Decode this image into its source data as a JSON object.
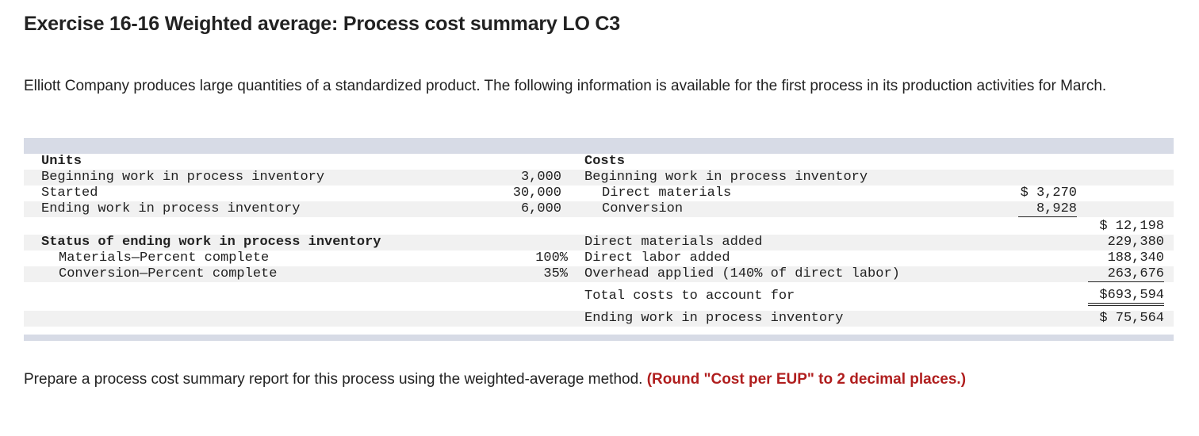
{
  "title": "Exercise 16-16 Weighted average: Process cost summary LO C3",
  "intro": "Elliott Company produces large quantities of a standardized product. The following information is available for the first process in its production activities for March.",
  "units": {
    "header": "Units",
    "rows": [
      {
        "label": "Beginning work in process inventory",
        "value": "3,000"
      },
      {
        "label": "Started",
        "value": "30,000"
      },
      {
        "label": "Ending work in process inventory",
        "value": "6,000"
      }
    ],
    "status_header": "Status of ending work in process inventory",
    "status_rows": [
      {
        "label": "Materials—Percent complete",
        "value": "100%"
      },
      {
        "label": "Conversion—Percent complete",
        "value": "35%"
      }
    ]
  },
  "costs": {
    "header": "Costs",
    "beginning_label": "Beginning work in process inventory",
    "direct_materials_label": "Direct materials",
    "direct_materials_value": "$ 3,270",
    "conversion_label": "Conversion",
    "conversion_value": "8,928",
    "beginning_total": "$ 12,198",
    "added": [
      {
        "label": "Direct materials added",
        "value": "229,380"
      },
      {
        "label": "Direct labor added",
        "value": "188,340"
      },
      {
        "label": "Overhead applied (140% of direct labor)",
        "value": "263,676"
      }
    ],
    "total_label": "Total costs to account for",
    "total_value": "$693,594",
    "ending_label": "Ending work in process inventory",
    "ending_value": "$ 75,564"
  },
  "instruction": {
    "text": "Prepare a process cost summary report for this process using the weighted-average method. ",
    "emphasis": "(Round \"Cost per EUP\" to 2 decimal places.)"
  }
}
